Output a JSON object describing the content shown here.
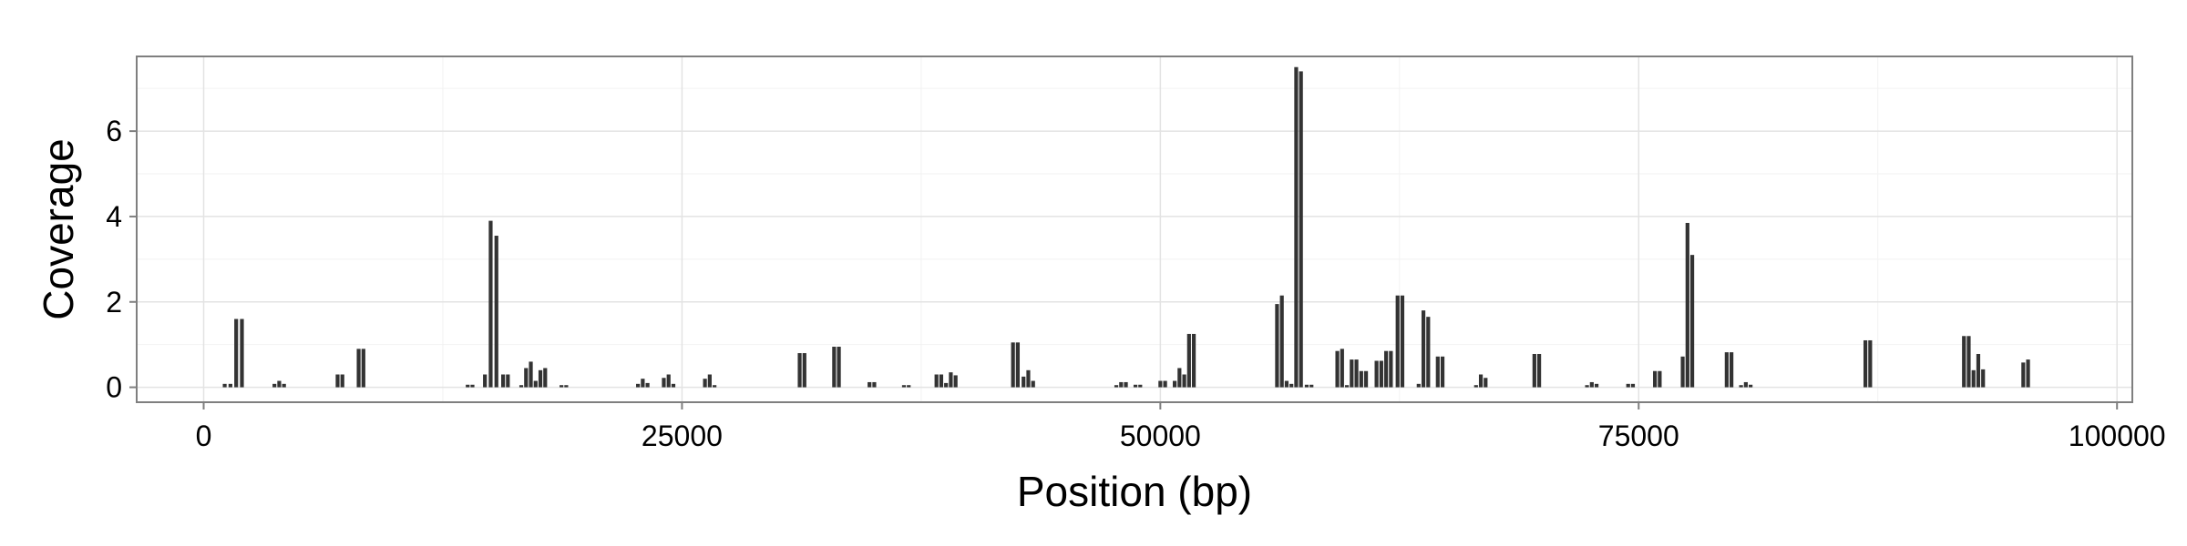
{
  "chart_data": {
    "type": "bar",
    "title": "",
    "xlabel": "Position (bp)",
    "ylabel": "Coverage",
    "xlim": [
      -3500,
      100800
    ],
    "ylim": [
      -0.35,
      7.75
    ],
    "x_ticks": [
      0,
      25000,
      50000,
      75000,
      100000
    ],
    "x_tick_labels": [
      "0",
      "25000",
      "50000",
      "75000",
      "100000"
    ],
    "y_ticks": [
      0,
      2,
      4,
      6
    ],
    "y_tick_labels": [
      "0",
      "2",
      "4",
      "6"
    ],
    "grid": true,
    "legend": "none",
    "bar_color": "#333333",
    "bar_width_bp": 200,
    "bars": [
      {
        "x": 1100,
        "y": 0.08
      },
      {
        "x": 1400,
        "y": 0.08
      },
      {
        "x": 1700,
        "y": 1.6
      },
      {
        "x": 2000,
        "y": 1.6
      },
      {
        "x": 3700,
        "y": 0.08
      },
      {
        "x": 3950,
        "y": 0.15
      },
      {
        "x": 4200,
        "y": 0.08
      },
      {
        "x": 7000,
        "y": 0.3
      },
      {
        "x": 7250,
        "y": 0.3
      },
      {
        "x": 8100,
        "y": 0.9
      },
      {
        "x": 8350,
        "y": 0.9
      },
      {
        "x": 13800,
        "y": 0.06
      },
      {
        "x": 14050,
        "y": 0.06
      },
      {
        "x": 14700,
        "y": 0.3
      },
      {
        "x": 15000,
        "y": 3.9
      },
      {
        "x": 15300,
        "y": 3.55
      },
      {
        "x": 15650,
        "y": 0.3
      },
      {
        "x": 15900,
        "y": 0.3
      },
      {
        "x": 16600,
        "y": 0.05
      },
      {
        "x": 16850,
        "y": 0.45
      },
      {
        "x": 17100,
        "y": 0.6
      },
      {
        "x": 17350,
        "y": 0.15
      },
      {
        "x": 17600,
        "y": 0.4
      },
      {
        "x": 17850,
        "y": 0.45
      },
      {
        "x": 18700,
        "y": 0.05
      },
      {
        "x": 18950,
        "y": 0.05
      },
      {
        "x": 22700,
        "y": 0.08
      },
      {
        "x": 22950,
        "y": 0.2
      },
      {
        "x": 23200,
        "y": 0.1
      },
      {
        "x": 24050,
        "y": 0.22
      },
      {
        "x": 24300,
        "y": 0.3
      },
      {
        "x": 24550,
        "y": 0.08
      },
      {
        "x": 26200,
        "y": 0.2
      },
      {
        "x": 26450,
        "y": 0.3
      },
      {
        "x": 26700,
        "y": 0.05
      },
      {
        "x": 31150,
        "y": 0.8
      },
      {
        "x": 31400,
        "y": 0.8
      },
      {
        "x": 32950,
        "y": 0.95
      },
      {
        "x": 33200,
        "y": 0.95
      },
      {
        "x": 34800,
        "y": 0.12
      },
      {
        "x": 35050,
        "y": 0.12
      },
      {
        "x": 36600,
        "y": 0.05
      },
      {
        "x": 36850,
        "y": 0.05
      },
      {
        "x": 38300,
        "y": 0.3
      },
      {
        "x": 38550,
        "y": 0.3
      },
      {
        "x": 38800,
        "y": 0.1
      },
      {
        "x": 39050,
        "y": 0.35
      },
      {
        "x": 39300,
        "y": 0.28
      },
      {
        "x": 42300,
        "y": 1.05
      },
      {
        "x": 42550,
        "y": 1.05
      },
      {
        "x": 42850,
        "y": 0.25
      },
      {
        "x": 43100,
        "y": 0.4
      },
      {
        "x": 43350,
        "y": 0.15
      },
      {
        "x": 47700,
        "y": 0.05
      },
      {
        "x": 47950,
        "y": 0.12
      },
      {
        "x": 48200,
        "y": 0.12
      },
      {
        "x": 48700,
        "y": 0.06
      },
      {
        "x": 48950,
        "y": 0.06
      },
      {
        "x": 50000,
        "y": 0.15
      },
      {
        "x": 50250,
        "y": 0.15
      },
      {
        "x": 50750,
        "y": 0.15
      },
      {
        "x": 51000,
        "y": 0.45
      },
      {
        "x": 51250,
        "y": 0.3
      },
      {
        "x": 51500,
        "y": 1.25
      },
      {
        "x": 51750,
        "y": 1.25
      },
      {
        "x": 56100,
        "y": 1.95
      },
      {
        "x": 56350,
        "y": 2.15
      },
      {
        "x": 56600,
        "y": 0.15
      },
      {
        "x": 56850,
        "y": 0.08
      },
      {
        "x": 57100,
        "y": 7.5
      },
      {
        "x": 57350,
        "y": 7.4
      },
      {
        "x": 57650,
        "y": 0.06
      },
      {
        "x": 57900,
        "y": 0.06
      },
      {
        "x": 59250,
        "y": 0.85
      },
      {
        "x": 59500,
        "y": 0.9
      },
      {
        "x": 59750,
        "y": 0.05
      },
      {
        "x": 60000,
        "y": 0.65
      },
      {
        "x": 60250,
        "y": 0.65
      },
      {
        "x": 60500,
        "y": 0.38
      },
      {
        "x": 60750,
        "y": 0.38
      },
      {
        "x": 61300,
        "y": 0.62
      },
      {
        "x": 61550,
        "y": 0.62
      },
      {
        "x": 61800,
        "y": 0.85
      },
      {
        "x": 62050,
        "y": 0.85
      },
      {
        "x": 62400,
        "y": 2.15
      },
      {
        "x": 62650,
        "y": 2.15
      },
      {
        "x": 63500,
        "y": 0.08
      },
      {
        "x": 63750,
        "y": 1.8
      },
      {
        "x": 64000,
        "y": 1.65
      },
      {
        "x": 64500,
        "y": 0.72
      },
      {
        "x": 64750,
        "y": 0.72
      },
      {
        "x": 66500,
        "y": 0.05
      },
      {
        "x": 66750,
        "y": 0.3
      },
      {
        "x": 67000,
        "y": 0.22
      },
      {
        "x": 69550,
        "y": 0.78
      },
      {
        "x": 69800,
        "y": 0.78
      },
      {
        "x": 72300,
        "y": 0.05
      },
      {
        "x": 72550,
        "y": 0.12
      },
      {
        "x": 72800,
        "y": 0.08
      },
      {
        "x": 74450,
        "y": 0.08
      },
      {
        "x": 74700,
        "y": 0.08
      },
      {
        "x": 75850,
        "y": 0.38
      },
      {
        "x": 76100,
        "y": 0.38
      },
      {
        "x": 77300,
        "y": 0.72
      },
      {
        "x": 77550,
        "y": 3.85
      },
      {
        "x": 77800,
        "y": 3.1
      },
      {
        "x": 79600,
        "y": 0.82
      },
      {
        "x": 79850,
        "y": 0.82
      },
      {
        "x": 80350,
        "y": 0.05
      },
      {
        "x": 80600,
        "y": 0.12
      },
      {
        "x": 80850,
        "y": 0.06
      },
      {
        "x": 86850,
        "y": 1.1
      },
      {
        "x": 87100,
        "y": 1.1
      },
      {
        "x": 92000,
        "y": 1.2
      },
      {
        "x": 92250,
        "y": 1.2
      },
      {
        "x": 92500,
        "y": 0.4
      },
      {
        "x": 92750,
        "y": 0.78
      },
      {
        "x": 93000,
        "y": 0.42
      },
      {
        "x": 95100,
        "y": 0.58
      },
      {
        "x": 95350,
        "y": 0.65
      }
    ]
  }
}
